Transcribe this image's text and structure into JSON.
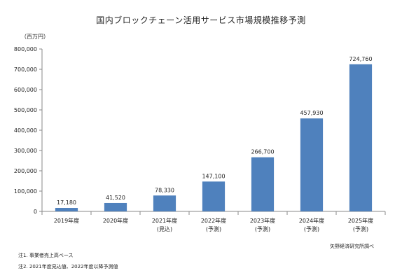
{
  "chart_data": {
    "type": "bar",
    "title": "国内ブロックチェーン活用サービス市場規模推移予測",
    "unit_label": "（百万円）",
    "categories": [
      "2019年度",
      "2020年度",
      "2021年度",
      "2022年度",
      "2023年度",
      "2024年度",
      "2025年度"
    ],
    "category_notes": [
      "",
      "",
      "(見込)",
      "(予測)",
      "(予測)",
      "(予測)",
      "(予測)"
    ],
    "values": [
      17180,
      41520,
      78330,
      147100,
      266700,
      457930,
      724760
    ],
    "value_labels": [
      "17,180",
      "41,520",
      "78,330",
      "147,100",
      "266,700",
      "457,930",
      "724,760"
    ],
    "y_ticks": [
      "0",
      "100,000",
      "200,000",
      "300,000",
      "400,000",
      "500,000",
      "600,000",
      "700,000",
      "800,000"
    ],
    "ylim": [
      0,
      800000
    ],
    "grid": false,
    "bar_color": "#4f81bd"
  },
  "notes": {
    "source": "矢野経済研究所調べ",
    "footnote1": "注1. 事業者売上高ベース",
    "footnote2": "注2. 2021年度見込値、2022年度以降予測値"
  }
}
